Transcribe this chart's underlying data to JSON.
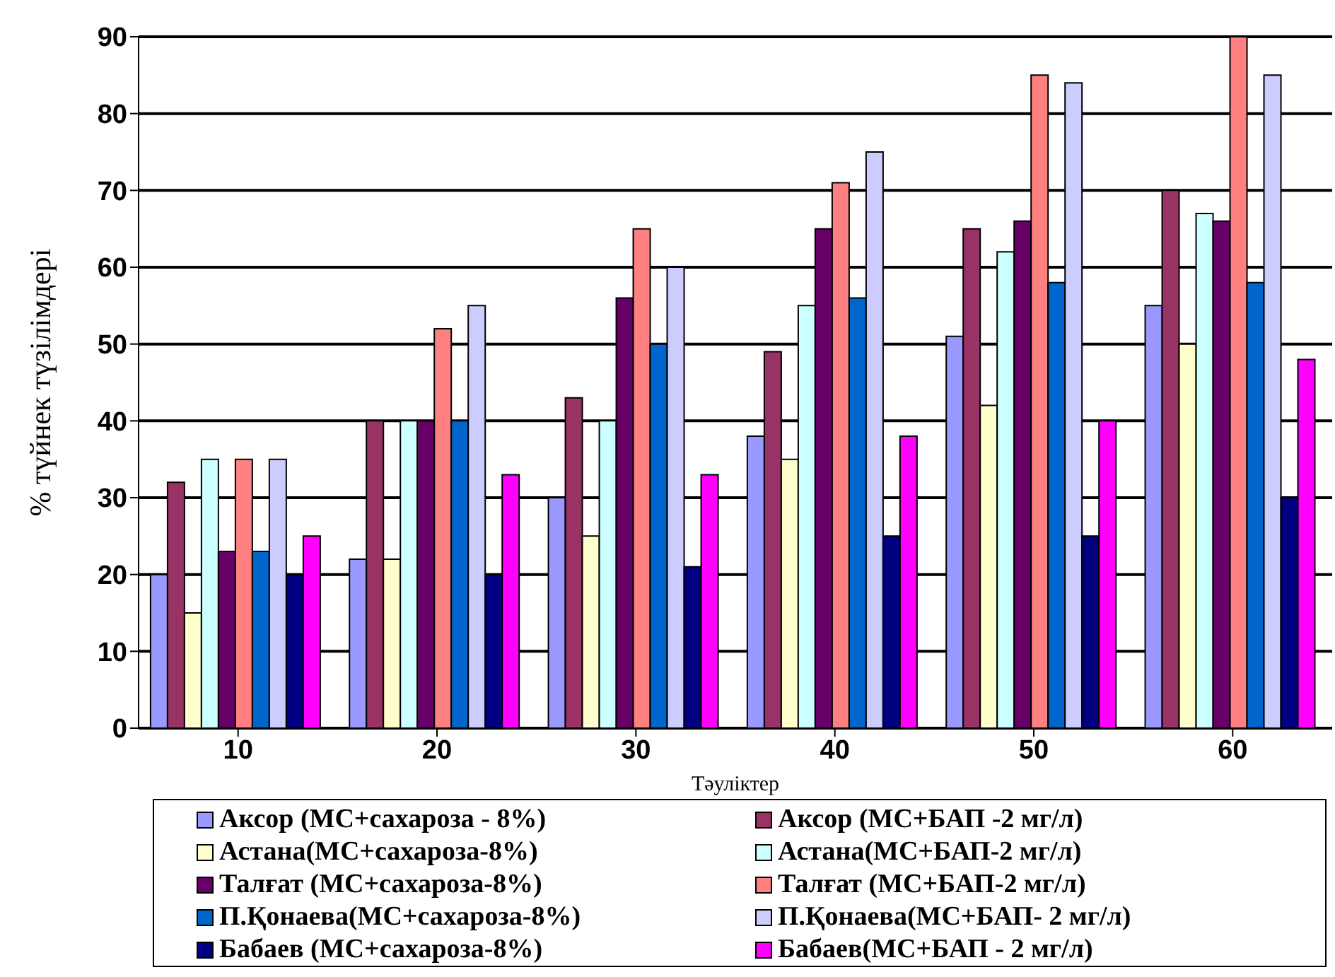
{
  "chart_data": {
    "type": "bar",
    "xlabel": "Тәуліктер",
    "ylabel": "% түйнек түзілімдері",
    "categories": [
      "10",
      "20",
      "30",
      "40",
      "50",
      "60"
    ],
    "series": [
      {
        "name": "Аксор (МС+сахароза - 8%)",
        "color": "#9999ff",
        "values": [
          20,
          22,
          30,
          38,
          51,
          55
        ]
      },
      {
        "name": "Аксор (МС+БАП -2 мг/л)",
        "color": "#993366",
        "values": [
          32,
          40,
          43,
          49,
          65,
          70
        ]
      },
      {
        "name": "Астана(МС+сахароза-8%)",
        "color": "#ffffcc",
        "values": [
          15,
          22,
          25,
          35,
          42,
          50
        ]
      },
      {
        "name": "Астана(МС+БАП-2 мг/л)",
        "color": "#ccffff",
        "values": [
          35,
          40,
          40,
          55,
          62,
          67
        ]
      },
      {
        "name": "Талғат (МС+сахароза-8%)",
        "color": "#660066",
        "values": [
          23,
          40,
          56,
          65,
          66,
          66
        ]
      },
      {
        "name": "Талғат (МС+БАП-2 мг/л)",
        "color": "#ff8080",
        "values": [
          35,
          52,
          65,
          71,
          85,
          90
        ]
      },
      {
        "name": "П.Қонаева(МС+сахароза-8%)",
        "color": "#0066cc",
        "values": [
          23,
          40,
          50,
          56,
          58,
          58
        ]
      },
      {
        "name": "П.Қонаева(МС+БАП- 2 мг/л)",
        "color": "#ccccff",
        "values": [
          35,
          55,
          60,
          75,
          84,
          85
        ]
      },
      {
        "name": "Бабаев (МС+сахароза-8%)",
        "color": "#000080",
        "values": [
          20,
          20,
          21,
          25,
          25,
          30
        ]
      },
      {
        "name": "Бабаев(МС+БАП - 2 мг/л)",
        "color": "#ff00ff",
        "values": [
          25,
          33,
          33,
          38,
          40,
          48
        ]
      }
    ],
    "ylim": [
      0,
      90
    ],
    "yticks": [
      0,
      10,
      20,
      30,
      40,
      50,
      60,
      70,
      80,
      90
    ],
    "grid": "y",
    "legend": "bottom"
  }
}
